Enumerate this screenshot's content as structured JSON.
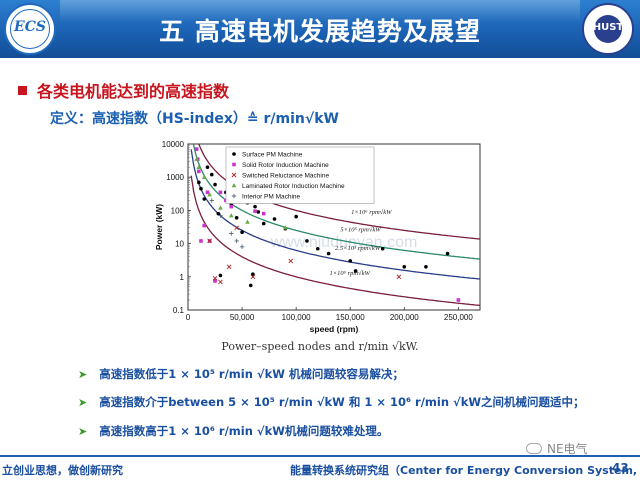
{
  "header": {
    "title": "五  高速电机发展趋势及展望",
    "logo_left_text": "ECS",
    "logo_right_text": "HUST"
  },
  "section": {
    "heading": "各类电机能达到的高速指数",
    "definition": "定义：高速指数（HS-index）≙ r/min√kW"
  },
  "chart_data": {
    "type": "scatter",
    "xlabel": "speed (rpm)",
    "ylabel": "Power (kW)",
    "xlim": [
      0,
      270000
    ],
    "ylim": [
      0.1,
      10000
    ],
    "yscale": "log",
    "x_ticks": [
      0,
      50000,
      100000,
      150000,
      200000,
      250000
    ],
    "x_tick_labels": [
      "0",
      "50,000",
      "100,000",
      "150,000",
      "200,000",
      "250,000"
    ],
    "y_ticks": [
      0.1,
      1,
      10,
      100,
      1000,
      10000
    ],
    "y_tick_labels": [
      "0.1",
      "1",
      "10",
      "100",
      "1000",
      "10000"
    ],
    "legend_position": "top-center",
    "caption": "Power–speed nodes and r/min √kW.",
    "watermark": "www.niudunyan.com",
    "series": [
      {
        "name": "Surface PM Machine",
        "marker": "circle",
        "color": "#000000",
        "points": [
          [
            10000,
            700
          ],
          [
            12000,
            450
          ],
          [
            15000,
            220
          ],
          [
            18000,
            2000
          ],
          [
            22000,
            1200
          ],
          [
            25000,
            600
          ],
          [
            28000,
            80
          ],
          [
            30000,
            1.1
          ],
          [
            35000,
            350
          ],
          [
            40000,
            150
          ],
          [
            45000,
            60
          ],
          [
            50000,
            22
          ],
          [
            55000,
            170
          ],
          [
            58000,
            0.55
          ],
          [
            60000,
            1.2
          ],
          [
            62000,
            130
          ],
          [
            65000,
            90
          ],
          [
            70000,
            40
          ],
          [
            80000,
            55
          ],
          [
            90000,
            28
          ],
          [
            100000,
            65
          ],
          [
            110000,
            12
          ],
          [
            120000,
            7
          ],
          [
            130000,
            5
          ],
          [
            150000,
            3
          ],
          [
            155000,
            1.5
          ],
          [
            180000,
            7
          ],
          [
            200000,
            2
          ],
          [
            220000,
            2
          ],
          [
            240000,
            5
          ]
        ]
      },
      {
        "name": "Solid Rotor Induction Machine",
        "marker": "square",
        "color": "#cc33cc",
        "points": [
          [
            8000,
            7000
          ],
          [
            9000,
            3500
          ],
          [
            10000,
            1500
          ],
          [
            12000,
            12
          ],
          [
            15000,
            35
          ],
          [
            18000,
            350
          ],
          [
            20000,
            12
          ],
          [
            25000,
            0.75
          ],
          [
            30000,
            350
          ],
          [
            35000,
            200
          ],
          [
            40000,
            130
          ],
          [
            60000,
            280
          ],
          [
            62000,
            95
          ],
          [
            70000,
            80
          ],
          [
            250000,
            0.2
          ]
        ]
      },
      {
        "name": "Switched Reluctance Machine",
        "marker": "x",
        "color": "#b02020",
        "points": [
          [
            20000,
            12
          ],
          [
            25000,
            0.9
          ],
          [
            30000,
            0.7
          ],
          [
            38000,
            2
          ],
          [
            45000,
            30
          ],
          [
            60000,
            1
          ],
          [
            95000,
            3
          ],
          [
            195000,
            1
          ]
        ]
      },
      {
        "name": "Laminated Rotor Induction Machine",
        "marker": "triangle",
        "color": "#66aa44",
        "points": [
          [
            8000,
            3500
          ],
          [
            10000,
            2000
          ],
          [
            15000,
            1000
          ],
          [
            20000,
            300
          ],
          [
            30000,
            120
          ],
          [
            40000,
            70
          ],
          [
            55000,
            45
          ],
          [
            90000,
            30
          ]
        ]
      },
      {
        "name": "Interior PM Machine",
        "marker": "plus",
        "color": "#556677",
        "points": [
          [
            22000,
            200
          ],
          [
            30000,
            70
          ],
          [
            40000,
            20
          ],
          [
            45000,
            12
          ],
          [
            50000,
            8
          ]
        ]
      }
    ],
    "reference_curves": [
      {
        "label": "1×10⁶ rpm√kW",
        "hs_index": 1000000,
        "color": "#7a1f3d"
      },
      {
        "label": "5×10⁵ rpm√kW",
        "hs_index": 500000,
        "color": "#2a8a6a"
      },
      {
        "label": "2.5×10⁵ rpm√kW",
        "hs_index": 250000,
        "color": "#2a3f8a"
      },
      {
        "label": "1×10⁵ rpm√kW",
        "hs_index": 100000,
        "color": "#7a1f3d"
      }
    ]
  },
  "bullets": [
    "高速指数低于1 × 10⁵ r/min √kW 机械问题较容易解决；",
    "高速指数介于between 5 × 10⁵ r/min √kW 和 1 × 10⁶ r/min √kW之间机械问题适中；",
    "高速指数高于1 × 10⁶ r/min √kW机械问题较难处理。"
  ],
  "footer": {
    "left": "立创业思想，做创新研究",
    "center": "能量转换系统研究组（Center for Energy Conversion System, CECS）",
    "page_number": "43",
    "watermark_brand": "NE电气"
  },
  "colors": {
    "header_blue": "#1a5fb0",
    "heading_red": "#c8141e",
    "text_blue": "#1a4fa0",
    "bullet_green": "#3a9a2a"
  }
}
